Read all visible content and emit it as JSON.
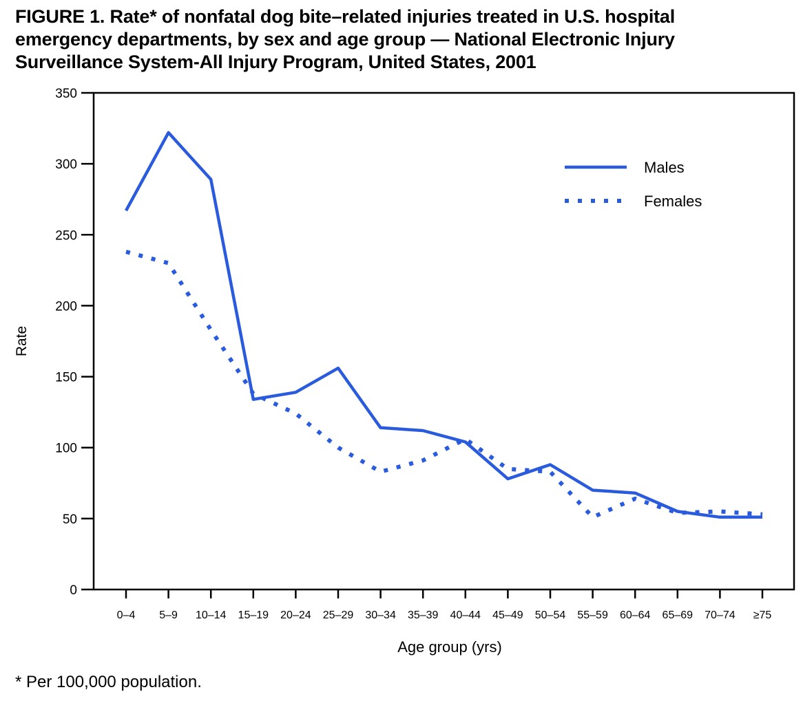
{
  "chart_data": {
    "type": "line",
    "title_lines": [
      "FIGURE 1. Rate* of nonfatal dog bite–related injuries treated in U.S. hospital",
      "emergency departments, by sex and age group — National Electronic Injury",
      "Surveillance System-All Injury Program, United States, 2001"
    ],
    "xlabel": "Age group (yrs)",
    "ylabel": "Rate",
    "ylim": [
      0,
      350
    ],
    "yticks": [
      0,
      50,
      100,
      150,
      200,
      250,
      300,
      350
    ],
    "categories": [
      "0–4",
      "5–9",
      "10–14",
      "15–19",
      "20–24",
      "25–29",
      "30–34",
      "35–39",
      "40–44",
      "45–49",
      "50–54",
      "55–59",
      "60–64",
      "65–69",
      "70–74",
      "≥75"
    ],
    "series": [
      {
        "name": "Males",
        "style": "solid",
        "values": [
          267,
          322,
          289,
          134,
          139,
          156,
          114,
          112,
          104,
          78,
          88,
          70,
          68,
          55,
          51,
          51
        ]
      },
      {
        "name": "Females",
        "style": "dotted",
        "values": [
          238,
          230,
          183,
          138,
          124,
          100,
          83,
          91,
          106,
          85,
          83,
          51,
          64,
          54,
          55,
          53
        ]
      }
    ],
    "legend_position": "top-right",
    "grid": false,
    "color": "#2a5bdc"
  },
  "footnote": "* Per 100,000 population."
}
